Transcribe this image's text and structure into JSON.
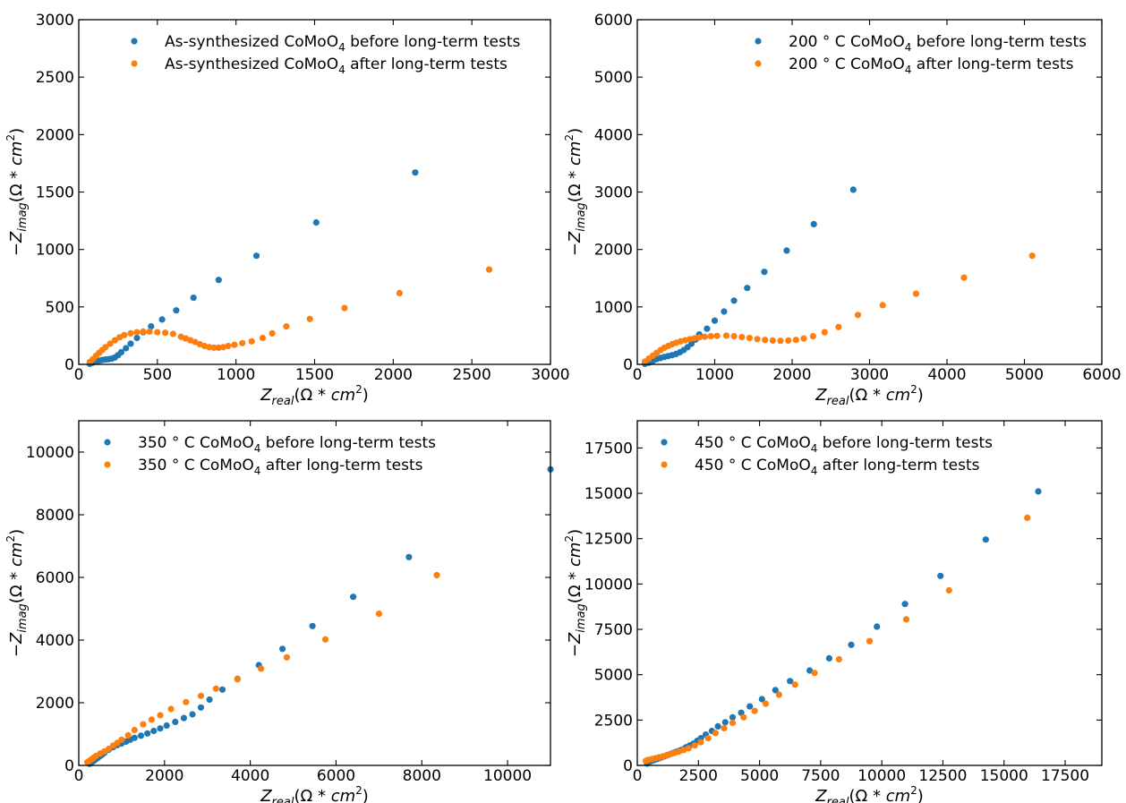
{
  "colors": {
    "before": "#1f77b4",
    "after": "#ff7f0e"
  },
  "chart_data": [
    {
      "type": "scatter",
      "xlabel": "Z_real(Ω*cm^2)",
      "ylabel": "-Z_imag(Ω*cm^2)",
      "xlim": [
        0,
        3000
      ],
      "ylim": [
        0,
        3000
      ],
      "xticks": [
        0,
        500,
        1000,
        1500,
        2000,
        2500,
        3000
      ],
      "yticks": [
        0,
        500,
        1000,
        1500,
        2000,
        2500,
        3000
      ],
      "legend": "top-center",
      "series": [
        {
          "name": "As-synthesized CoMoO4 before long-term tests",
          "color": "before",
          "x": [
            70,
            90,
            110,
            130,
            150,
            170,
            190,
            210,
            230,
            250,
            270,
            300,
            330,
            370,
            410,
            460,
            530,
            620,
            730,
            890,
            1130,
            1510,
            2140
          ],
          "y": [
            5,
            15,
            25,
            32,
            38,
            42,
            45,
            50,
            60,
            80,
            105,
            140,
            180,
            230,
            280,
            330,
            390,
            470,
            580,
            735,
            945,
            1235,
            1670
          ]
        },
        {
          "name": "As-synthesized CoMoO4 after long-term tests",
          "color": "after",
          "x": [
            70,
            90,
            110,
            130,
            150,
            170,
            200,
            230,
            260,
            290,
            330,
            370,
            410,
            450,
            500,
            550,
            600,
            650,
            680,
            710,
            740,
            770,
            800,
            830,
            860,
            890,
            920,
            950,
            990,
            1040,
            1100,
            1170,
            1230,
            1320,
            1470,
            1690,
            2040,
            2610
          ],
          "y": [
            20,
            45,
            75,
            100,
            125,
            150,
            180,
            210,
            235,
            255,
            270,
            280,
            285,
            285,
            280,
            275,
            265,
            240,
            225,
            210,
            195,
            175,
            160,
            150,
            145,
            145,
            150,
            160,
            170,
            185,
            200,
            230,
            270,
            330,
            395,
            490,
            620,
            825
          ]
        }
      ]
    },
    {
      "type": "scatter",
      "xlabel": "Z_real(Ω*cm^2)",
      "ylabel": "-Z_imag(Ω*cm^2)",
      "xlim": [
        0,
        6000
      ],
      "ylim": [
        0,
        6000
      ],
      "xticks": [
        0,
        1000,
        2000,
        3000,
        4000,
        5000,
        6000
      ],
      "yticks": [
        0,
        1000,
        2000,
        3000,
        4000,
        5000,
        6000
      ],
      "legend": "top-right",
      "series": [
        {
          "name": "200 ° C CoMoO4 before long-term tests",
          "color": "before",
          "x": [
            100,
            150,
            200,
            250,
            300,
            350,
            400,
            450,
            500,
            550,
            600,
            650,
            700,
            750,
            800,
            900,
            1000,
            1120,
            1250,
            1420,
            1640,
            1930,
            2280,
            2790
          ],
          "y": [
            10,
            30,
            60,
            90,
            110,
            130,
            145,
            160,
            180,
            210,
            250,
            300,
            360,
            430,
            520,
            620,
            760,
            920,
            1110,
            1330,
            1610,
            1980,
            2440,
            3040
          ]
        },
        {
          "name": "200 ° C CoMoO4 after long-term tests",
          "color": "after",
          "x": [
            100,
            150,
            200,
            250,
            300,
            350,
            400,
            450,
            500,
            560,
            620,
            680,
            740,
            800,
            870,
            950,
            1030,
            1150,
            1250,
            1350,
            1450,
            1550,
            1650,
            1750,
            1850,
            1950,
            2050,
            2150,
            2270,
            2420,
            2600,
            2850,
            3170,
            3600,
            4220,
            5100
          ],
          "y": [
            50,
            100,
            150,
            200,
            250,
            290,
            320,
            350,
            375,
            400,
            420,
            440,
            455,
            470,
            480,
            490,
            495,
            500,
            490,
            475,
            460,
            440,
            425,
            415,
            410,
            415,
            425,
            450,
            490,
            560,
            650,
            860,
            1030,
            1230,
            1510,
            1890
          ]
        }
      ]
    },
    {
      "type": "scatter",
      "xlabel": "Z_real(Ω*cm^2)",
      "ylabel": "-Z_imag(Ω*cm^2)",
      "xlim": [
        0,
        11000
      ],
      "ylim": [
        0,
        11000
      ],
      "xticks": [
        0,
        2000,
        4000,
        6000,
        8000,
        10000
      ],
      "yticks": [
        0,
        2000,
        4000,
        6000,
        8000,
        10000
      ],
      "legend": "top-left",
      "series": [
        {
          "name": "350 ° C CoMoO4 before long-term tests",
          "color": "before",
          "x": [
            250,
            300,
            350,
            400,
            450,
            500,
            550,
            600,
            700,
            800,
            900,
            1000,
            1100,
            1200,
            1300,
            1450,
            1600,
            1750,
            1900,
            2050,
            2250,
            2450,
            2650,
            2850,
            3050,
            3350,
            3700,
            4200,
            4750,
            5450,
            6400,
            7700,
            11000
          ],
          "y": [
            50,
            100,
            150,
            200,
            250,
            300,
            350,
            400,
            500,
            580,
            650,
            700,
            760,
            820,
            880,
            950,
            1020,
            1100,
            1180,
            1270,
            1390,
            1510,
            1630,
            1850,
            2100,
            2420,
            2760,
            3200,
            3720,
            4450,
            5380,
            6650,
            9450
          ]
        },
        {
          "name": "350 ° C CoMoO4 after long-term tests",
          "color": "after",
          "x": [
            200,
            250,
            300,
            350,
            400,
            500,
            600,
            700,
            800,
            900,
            1000,
            1150,
            1300,
            1500,
            1700,
            1900,
            2150,
            2500,
            2850,
            3200,
            3700,
            4250,
            4850,
            5750,
            7000,
            8350
          ],
          "y": [
            100,
            150,
            200,
            250,
            300,
            380,
            450,
            530,
            630,
            720,
            820,
            960,
            1130,
            1310,
            1460,
            1600,
            1800,
            2020,
            2220,
            2450,
            2750,
            3090,
            3450,
            4020,
            4840,
            6070
          ]
        }
      ]
    },
    {
      "type": "scatter",
      "xlabel": "Z_real(Ω*cm^2)",
      "ylabel": "-Z_imag(Ω*cm^2)",
      "xlim": [
        0,
        19000
      ],
      "ylim": [
        0,
        19000
      ],
      "xticks": [
        0,
        2500,
        5000,
        7500,
        10000,
        12500,
        15000,
        17500
      ],
      "yticks": [
        0,
        2500,
        5000,
        7500,
        10000,
        12500,
        15000,
        17500
      ],
      "legend": "top-left",
      "series": [
        {
          "name": "450 ° C CoMoO4 before long-term tests",
          "color": "before",
          "x": [
            400,
            500,
            600,
            700,
            800,
            900,
            1000,
            1100,
            1200,
            1300,
            1400,
            1500,
            1600,
            1700,
            1800,
            1900,
            2000,
            2150,
            2300,
            2450,
            2600,
            2800,
            3050,
            3300,
            3600,
            3900,
            4250,
            4600,
            5100,
            5650,
            6250,
            7050,
            7850,
            8750,
            9800,
            10950,
            12400,
            14250,
            16400
          ],
          "y": [
            100,
            200,
            250,
            300,
            350,
            400,
            450,
            500,
            550,
            600,
            650,
            700,
            750,
            800,
            850,
            900,
            1000,
            1100,
            1200,
            1350,
            1500,
            1700,
            1900,
            2150,
            2380,
            2650,
            2900,
            3250,
            3650,
            4150,
            4650,
            5230,
            5900,
            6650,
            7650,
            8900,
            10450,
            12450,
            15100
          ]
        },
        {
          "name": "450 ° C CoMoO4 after long-term tests",
          "color": "after",
          "x": [
            350,
            450,
            600,
            750,
            900,
            1050,
            1200,
            1350,
            1500,
            1700,
            1900,
            2100,
            2350,
            2600,
            2900,
            3200,
            3550,
            3900,
            4350,
            4800,
            5250,
            5800,
            6450,
            7250,
            8250,
            9500,
            11000,
            12750,
            15950
          ],
          "y": [
            250,
            300,
            350,
            400,
            450,
            500,
            560,
            620,
            680,
            760,
            850,
            950,
            1100,
            1280,
            1500,
            1780,
            2050,
            2350,
            2650,
            3000,
            3400,
            3900,
            4450,
            5100,
            5850,
            6850,
            8050,
            9650,
            13650
          ]
        }
      ]
    }
  ]
}
